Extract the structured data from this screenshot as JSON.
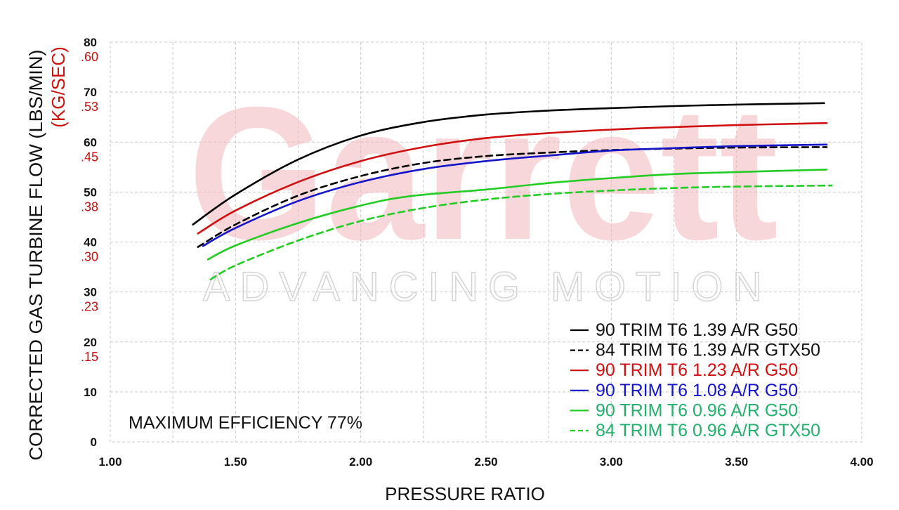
{
  "chart_data": {
    "type": "line",
    "xlabel": "PRESSURE RATIO",
    "ylabel_primary": "CORRECTED GAS TURBINE FLOW (LBS/MIN)",
    "ylabel_secondary": "(KG/SEC)",
    "xlim": [
      1.0,
      4.0
    ],
    "ylim": [
      0,
      80
    ],
    "grid": true,
    "legend_position": "bottom-right",
    "x_ticks": [
      "1.00",
      "1.50",
      "2.00",
      "2.50",
      "3.00",
      "3.50",
      "4.00"
    ],
    "y_ticks": [
      "0",
      "10",
      "20",
      "30",
      "40",
      "50",
      "60",
      "70",
      "80"
    ],
    "y2_ticks": [
      {
        "at": 20,
        "label": ".15"
      },
      {
        "at": 30,
        "label": ".23"
      },
      {
        "at": 40,
        "label": ".30"
      },
      {
        "at": 50,
        "label": ".38"
      },
      {
        "at": 60,
        "label": ".45"
      },
      {
        "at": 70,
        "label": ".53"
      },
      {
        "at": 80,
        "label": ".60"
      }
    ],
    "annotation": "MAXIMUM EFFICIENCY 77%",
    "watermark": {
      "brand": "Garrett",
      "tagline": "ADVANCING MOTION"
    },
    "series": [
      {
        "name": "90 TRIM T6 1.39 A/R G50",
        "color": "#000000",
        "dash": false,
        "x": [
          1.33,
          1.5,
          1.75,
          2.0,
          2.25,
          2.5,
          2.75,
          3.0,
          3.25,
          3.5,
          3.85
        ],
        "y": [
          43.5,
          49.5,
          56.5,
          61.3,
          64.0,
          65.5,
          66.3,
          66.8,
          67.2,
          67.5,
          67.8
        ]
      },
      {
        "name": "84 TRIM T6 1.39 A/R GTX50",
        "color": "#000000",
        "dash": true,
        "x": [
          1.35,
          1.5,
          1.75,
          2.0,
          2.25,
          2.5,
          2.75,
          3.0,
          3.25,
          3.5,
          3.86
        ],
        "y": [
          39.0,
          43.5,
          49.3,
          53.2,
          55.8,
          57.2,
          57.9,
          58.4,
          58.7,
          58.9,
          59.0
        ]
      },
      {
        "name": "90 TRIM T6 1.23 A/R G50",
        "color": "#d01010",
        "dash": false,
        "x": [
          1.35,
          1.5,
          1.75,
          2.0,
          2.25,
          2.5,
          2.75,
          3.0,
          3.25,
          3.5,
          3.86
        ],
        "y": [
          41.7,
          46.3,
          52.0,
          56.2,
          59.0,
          60.8,
          61.8,
          62.5,
          63.0,
          63.4,
          63.8
        ]
      },
      {
        "name": "90 TRIM T6 1.08 A/R G50",
        "color": "#1414c8",
        "dash": false,
        "x": [
          1.37,
          1.5,
          1.75,
          2.0,
          2.25,
          2.5,
          2.75,
          3.0,
          3.25,
          3.5,
          3.86
        ],
        "y": [
          39.2,
          42.8,
          48.2,
          52.0,
          54.6,
          56.2,
          57.3,
          58.3,
          58.8,
          59.2,
          59.5
        ]
      },
      {
        "name": "90 TRIM T6 0.96 A/R G50",
        "color": "#22cc22",
        "dash": false,
        "x": [
          1.39,
          1.5,
          1.75,
          2.0,
          2.2,
          2.5,
          2.75,
          3.0,
          3.25,
          3.5,
          3.86
        ],
        "y": [
          36.5,
          39.3,
          43.8,
          47.3,
          49.2,
          50.5,
          51.8,
          52.8,
          53.6,
          54.0,
          54.5
        ]
      },
      {
        "name": "84 TRIM T6 0.96 A/R GTX50",
        "color": "#22cc22",
        "dash": true,
        "x": [
          1.4,
          1.5,
          1.75,
          2.0,
          2.25,
          2.5,
          2.75,
          3.0,
          3.25,
          3.5,
          3.88
        ],
        "y": [
          32.5,
          35.3,
          40.3,
          44.2,
          46.8,
          48.5,
          49.6,
          50.3,
          50.8,
          51.1,
          51.3
        ]
      }
    ]
  }
}
